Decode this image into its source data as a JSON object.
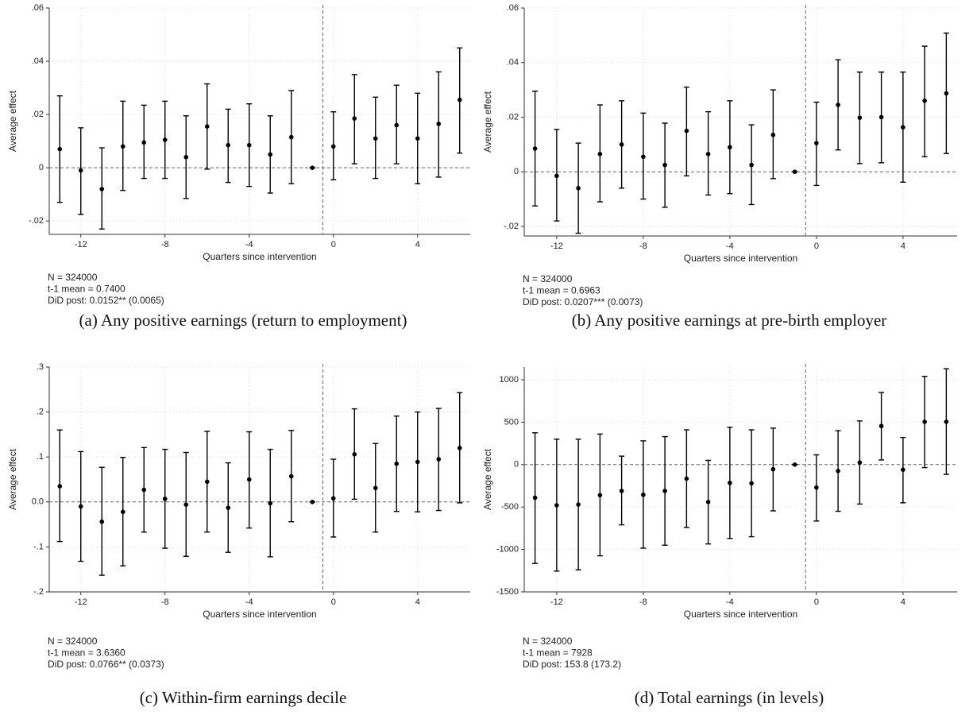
{
  "chart_data": [
    {
      "type": "errorbar",
      "caption": "(a) Any positive earnings (return to employment)",
      "ylabel": "Average effect",
      "xlabel": "Quarters since intervention",
      "notes": [
        "N = 324000",
        "t-1 mean =  0.7400",
        "DiD post: 0.0152** (0.0065)"
      ],
      "x": [
        -13,
        -12,
        -11,
        -10,
        -9,
        -8,
        -7,
        -6,
        -5,
        -4,
        -3,
        -2,
        -1,
        0,
        1,
        2,
        3,
        4,
        5,
        6
      ],
      "values": [
        0.007,
        -0.001,
        -0.008,
        0.008,
        0.0095,
        0.0105,
        0.004,
        0.0155,
        0.0085,
        0.0085,
        0.005,
        0.0115,
        0,
        0.008,
        0.0185,
        0.011,
        0.016,
        0.011,
        0.0165,
        0.0255
      ],
      "ci_low": [
        -0.013,
        -0.0175,
        -0.023,
        -0.0085,
        -0.004,
        -0.004,
        -0.0115,
        -0.0005,
        -0.0055,
        -0.007,
        -0.0095,
        -0.006,
        0,
        -0.0045,
        0.0015,
        -0.004,
        0.0015,
        -0.006,
        -0.0035,
        0.0055
      ],
      "ci_high": [
        0.027,
        0.015,
        0.0075,
        0.025,
        0.0235,
        0.025,
        0.0195,
        0.0315,
        0.022,
        0.024,
        0.0195,
        0.029,
        0,
        0.021,
        0.035,
        0.0265,
        0.031,
        0.028,
        0.036,
        0.045
      ],
      "xlim": [
        -13.5,
        6.5
      ],
      "ylim": [
        -0.025,
        0.06
      ],
      "xticks": [
        -12,
        -8,
        -4,
        0,
        4
      ],
      "yticks": [
        {
          "value": -0.02,
          "label": "-.02"
        },
        0,
        {
          "value": 0.02,
          "label": ".02"
        },
        {
          "value": 0.04,
          "label": ".04"
        },
        {
          "value": 0.06,
          "label": ".06"
        }
      ],
      "hline": 0,
      "vline": -0.5,
      "color": "#000000",
      "grid": true
    },
    {
      "type": "errorbar",
      "caption": "(b) Any positive earnings at pre-birth employer",
      "ylabel": "Average effect",
      "xlabel": "Quarters since intervention",
      "notes": [
        "N = 324000",
        "t-1 mean =  0.6963",
        "DiD post: 0.0207*** (0.0073)"
      ],
      "x": [
        -13,
        -12,
        -11,
        -10,
        -9,
        -8,
        -7,
        -6,
        -5,
        -4,
        -3,
        -2,
        -1,
        0,
        1,
        2,
        3,
        4,
        5,
        6
      ],
      "values": [
        0.0085,
        -0.0015,
        -0.006,
        0.0065,
        0.01,
        0.0055,
        0.0025,
        0.015,
        0.0065,
        0.009,
        0.0025,
        0.0135,
        0,
        0.0105,
        0.0245,
        0.0198,
        0.02,
        0.0163,
        0.026,
        0.0287
      ],
      "ci_low": [
        -0.0125,
        -0.018,
        -0.0225,
        -0.011,
        -0.006,
        -0.01,
        -0.013,
        -0.0015,
        -0.0085,
        -0.008,
        -0.012,
        -0.0025,
        0,
        -0.005,
        0.008,
        0.003,
        0.0033,
        -0.0038,
        0.0055,
        0.0067
      ],
      "ci_high": [
        0.0295,
        0.0155,
        0.0105,
        0.0245,
        0.026,
        0.0215,
        0.0178,
        0.031,
        0.022,
        0.026,
        0.0172,
        0.03,
        0,
        0.0255,
        0.041,
        0.0365,
        0.0365,
        0.0365,
        0.046,
        0.0508
      ],
      "xlim": [
        -13.5,
        6.5
      ],
      "ylim": [
        -0.0235,
        0.06
      ],
      "xticks": [
        -12,
        -8,
        -4,
        0,
        4
      ],
      "yticks": [
        {
          "value": -0.02,
          "label": "-.02"
        },
        0,
        {
          "value": 0.02,
          "label": ".02"
        },
        {
          "value": 0.04,
          "label": ".04"
        },
        {
          "value": 0.06,
          "label": ".06"
        }
      ],
      "hline": 0,
      "vline": -0.5,
      "color": "#000000",
      "grid": true
    },
    {
      "type": "errorbar",
      "caption": "(c) Within-firm earnings decile",
      "ylabel": "Average effect",
      "xlabel": "Quarters since intervention",
      "notes": [
        "N = 324000",
        "t-1 mean =  3.6360",
        "DiD post: 0.0766** (0.0373)"
      ],
      "x": [
        -13,
        -12,
        -11,
        -10,
        -9,
        -8,
        -7,
        -6,
        -5,
        -4,
        -3,
        -2,
        -1,
        0,
        1,
        2,
        3,
        4,
        5,
        6
      ],
      "values": [
        0.035,
        -0.01,
        -0.044,
        -0.022,
        0.027,
        0.007,
        -0.006,
        0.045,
        -0.013,
        0.05,
        -0.003,
        0.057,
        0,
        0.008,
        0.106,
        0.031,
        0.085,
        0.089,
        0.095,
        0.12
      ],
      "ci_low": [
        -0.088,
        -0.132,
        -0.163,
        -0.142,
        -0.067,
        -0.103,
        -0.121,
        -0.067,
        -0.112,
        -0.058,
        -0.122,
        -0.044,
        0,
        -0.078,
        0.006,
        -0.067,
        -0.021,
        -0.022,
        -0.019,
        -0.002
      ],
      "ci_high": [
        0.16,
        0.112,
        0.077,
        0.099,
        0.121,
        0.117,
        0.11,
        0.157,
        0.087,
        0.156,
        0.117,
        0.159,
        0,
        0.095,
        0.207,
        0.13,
        0.191,
        0.2,
        0.208,
        0.243
      ],
      "xlim": [
        -13.5,
        6.5
      ],
      "ylim": [
        -0.2,
        0.3
      ],
      "xticks": [
        -12,
        -8,
        -4,
        0,
        4
      ],
      "yticks": [
        {
          "value": -0.2,
          "label": "-.2"
        },
        {
          "value": -0.1,
          "label": "-.1"
        },
        {
          "value": 0,
          "label": "0.0"
        },
        {
          "value": 0.1,
          "label": ".1"
        },
        {
          "value": 0.2,
          "label": ".2"
        },
        {
          "value": 0.3,
          "label": ".3"
        }
      ],
      "hline": 0,
      "vline": -0.5,
      "color": "#000000",
      "grid": true
    },
    {
      "type": "errorbar",
      "caption": "(d) Total earnings (in levels)",
      "ylabel": "Average effect",
      "xlabel": "Quarters since intervention",
      "notes": [
        "N = 324000",
        "t-1 mean = 7928",
        "DiD post: 153.8 (173.2)"
      ],
      "x": [
        -13,
        -12,
        -11,
        -10,
        -9,
        -8,
        -7,
        -6,
        -5,
        -4,
        -3,
        -2,
        -1,
        0,
        1,
        2,
        3,
        4,
        5,
        6
      ],
      "values": [
        -390,
        -480,
        -470,
        -360,
        -310,
        -355,
        -310,
        -165,
        -440,
        -215,
        -220,
        -55,
        0,
        -270,
        -75,
        25,
        455,
        -60,
        505,
        505
      ],
      "ci_low": [
        -1165,
        -1255,
        -1240,
        -1075,
        -710,
        -985,
        -950,
        -740,
        -935,
        -870,
        -850,
        -545,
        0,
        -665,
        -550,
        -465,
        55,
        -450,
        -35,
        -115
      ],
      "ci_high": [
        375,
        300,
        300,
        360,
        100,
        280,
        330,
        410,
        50,
        440,
        410,
        430,
        0,
        115,
        400,
        515,
        850,
        320,
        1040,
        1130
      ],
      "xlim": [
        -13.5,
        6.5
      ],
      "ylim": [
        -1500,
        1150
      ],
      "xticks": [
        -12,
        -8,
        -4,
        0,
        4
      ],
      "yticks": [
        -1500,
        -1000,
        -500,
        0,
        500,
        1000
      ],
      "hline": 0,
      "vline": -0.5,
      "color": "#000000",
      "grid": true
    }
  ]
}
